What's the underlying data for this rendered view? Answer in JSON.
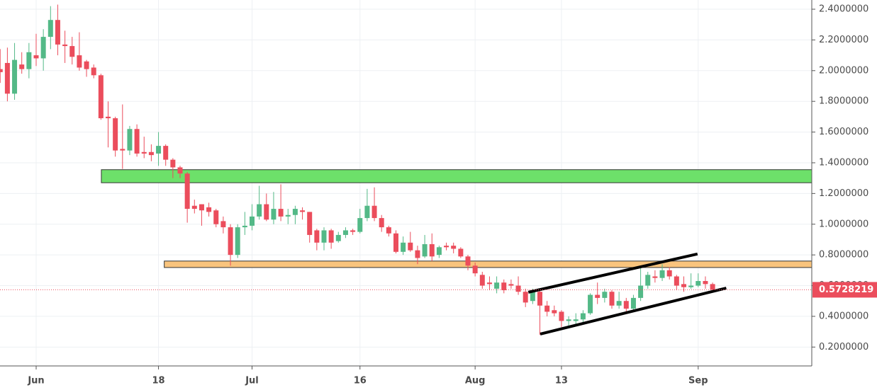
{
  "chart_data": {
    "type": "candlestick",
    "categories": [
      null,
      null,
      null,
      null,
      null,
      "Jun",
      null,
      null,
      null,
      null,
      null,
      null,
      null,
      null,
      null,
      null,
      null,
      null,
      null,
      null,
      null,
      null,
      "18",
      null,
      null,
      null,
      null,
      null,
      null,
      null,
      null,
      null,
      null,
      null,
      null,
      "Jul",
      null,
      null,
      null,
      null,
      null,
      null,
      null,
      null,
      null,
      null,
      null,
      null,
      null,
      null,
      "16",
      null,
      null,
      null,
      null,
      null,
      null,
      null,
      null,
      null,
      null,
      null,
      null,
      null,
      null,
      null,
      "Aug",
      null,
      null,
      null,
      null,
      null,
      null,
      null,
      null,
      null,
      null,
      null,
      "13",
      null,
      null,
      null,
      null,
      null,
      null,
      null,
      null,
      null,
      null,
      null,
      null,
      null,
      null,
      null,
      null,
      null,
      null,
      "Sep",
      null,
      null
    ],
    "open": [
      2.01,
      2.05,
      1.85,
      2.04,
      2.01,
      2.1,
      2.08,
      2.22,
      2.33,
      2.17,
      2.16,
      2.1,
      2.06,
      2.02,
      1.97,
      1.7,
      1.69,
      1.49,
      1.48,
      1.62,
      1.47,
      1.47,
      1.46,
      1.51,
      1.42,
      1.37,
      1.33,
      1.12,
      1.13,
      1.11,
      1.09,
      1.02,
      0.98,
      0.8,
      0.98,
      0.99,
      1.05,
      1.13,
      1.03,
      1.1,
      1.05,
      1.06,
      1.09,
      1.08,
      0.96,
      0.88,
      0.96,
      0.89,
      0.93,
      0.96,
      0.95,
      1.04,
      1.12,
      1.04,
      0.98,
      0.94,
      0.82,
      0.88,
      0.83,
      0.79,
      0.87,
      0.8,
      0.86,
      0.86,
      0.84,
      0.79,
      0.73,
      0.67,
      0.62,
      0.58,
      0.62,
      0.61,
      0.6,
      0.56,
      0.5,
      0.56,
      0.47,
      0.44,
      0.43,
      0.37,
      0.37,
      0.38,
      0.42,
      0.54,
      0.52,
      0.56,
      0.47,
      0.5,
      0.45,
      0.52,
      0.6,
      0.66,
      0.65,
      0.7,
      0.66,
      0.61,
      0.59,
      0.6,
      0.63,
      0.61
    ],
    "high": [
      2.14,
      2.15,
      2.18,
      2.12,
      2.18,
      2.24,
      2.27,
      2.42,
      2.43,
      2.26,
      2.22,
      2.25,
      2.07,
      2.04,
      1.98,
      1.8,
      1.7,
      1.78,
      1.64,
      1.65,
      1.57,
      1.52,
      1.6,
      1.52,
      1.43,
      1.38,
      1.34,
      1.16,
      1.13,
      1.14,
      1.1,
      1.05,
      1.0,
      1.0,
      1.08,
      1.13,
      1.25,
      1.2,
      1.21,
      1.26,
      1.1,
      1.12,
      1.11,
      1.08,
      0.97,
      0.98,
      0.97,
      0.95,
      0.98,
      0.97,
      1.1,
      1.23,
      1.24,
      1.06,
      0.99,
      0.96,
      0.92,
      0.95,
      0.86,
      0.93,
      0.94,
      0.86,
      0.88,
      0.88,
      0.85,
      0.8,
      0.75,
      0.69,
      0.66,
      0.66,
      0.64,
      0.64,
      0.66,
      0.58,
      0.58,
      0.57,
      0.5,
      0.47,
      0.44,
      0.4,
      0.42,
      0.44,
      0.55,
      0.62,
      0.58,
      0.57,
      0.56,
      0.52,
      0.54,
      0.72,
      0.69,
      0.7,
      0.74,
      0.72,
      0.67,
      0.66,
      0.68,
      0.68,
      0.66,
      0.62
    ],
    "low": [
      1.92,
      1.8,
      1.81,
      1.98,
      1.95,
      2.03,
      2.0,
      2.14,
      2.1,
      2.05,
      2.04,
      2.0,
      1.96,
      1.95,
      1.68,
      1.5,
      1.44,
      1.36,
      1.45,
      1.44,
      1.43,
      1.41,
      1.38,
      1.38,
      1.3,
      1.3,
      1.01,
      1.07,
      0.99,
      1.05,
      0.98,
      0.94,
      0.73,
      0.78,
      0.93,
      0.96,
      1.03,
      1.02,
      1.0,
      1.02,
      1.0,
      1.0,
      1.03,
      0.88,
      0.83,
      0.83,
      0.84,
      0.88,
      0.91,
      0.93,
      0.94,
      1.02,
      1.02,
      0.95,
      0.92,
      0.81,
      0.8,
      0.82,
      0.74,
      0.78,
      0.76,
      0.78,
      0.83,
      0.81,
      0.78,
      0.7,
      0.66,
      0.58,
      0.57,
      0.55,
      0.55,
      0.58,
      0.54,
      0.46,
      0.48,
      0.28,
      0.4,
      0.4,
      0.33,
      0.34,
      0.34,
      0.36,
      0.41,
      0.48,
      0.49,
      0.45,
      0.45,
      0.43,
      0.43,
      0.5,
      0.58,
      0.62,
      0.63,
      0.64,
      0.57,
      0.56,
      0.58,
      0.59,
      0.58,
      0.56
    ],
    "close": [
      1.99,
      1.85,
      2.07,
      2.01,
      2.12,
      2.08,
      2.22,
      2.33,
      2.17,
      2.16,
      2.09,
      2.02,
      2.01,
      1.97,
      1.69,
      1.69,
      1.48,
      1.48,
      1.62,
      1.46,
      1.46,
      1.45,
      1.51,
      1.42,
      1.37,
      1.33,
      1.1,
      1.1,
      1.09,
      1.08,
      1.0,
      0.98,
      0.8,
      0.98,
      0.99,
      1.05,
      1.13,
      1.03,
      1.1,
      1.05,
      1.06,
      1.1,
      1.08,
      0.93,
      0.88,
      0.96,
      0.88,
      0.93,
      0.96,
      0.95,
      1.04,
      1.12,
      1.04,
      0.98,
      0.94,
      0.82,
      0.88,
      0.83,
      0.78,
      0.87,
      0.79,
      0.85,
      0.85,
      0.84,
      0.79,
      0.73,
      0.68,
      0.6,
      0.61,
      0.62,
      0.57,
      0.6,
      0.56,
      0.49,
      0.56,
      0.47,
      0.43,
      0.42,
      0.37,
      0.38,
      0.38,
      0.42,
      0.54,
      0.52,
      0.56,
      0.47,
      0.5,
      0.45,
      0.52,
      0.6,
      0.67,
      0.65,
      0.7,
      0.66,
      0.6,
      0.59,
      0.6,
      0.63,
      0.61,
      0.5728219
    ],
    "up_color": "#53b987",
    "down_color": "#eb4d5c",
    "ylim": [
      0.077,
      2.46
    ],
    "yticks": [
      {
        "value": 0.2,
        "label": "0.2000000"
      },
      {
        "value": 0.4,
        "label": "0.4000000"
      },
      {
        "value": 0.6,
        "label": "0.6000000"
      },
      {
        "value": 0.8,
        "label": "0.8000000"
      },
      {
        "value": 1.0,
        "label": "1.0000000"
      },
      {
        "value": 1.2,
        "label": "1.2000000"
      },
      {
        "value": 1.4,
        "label": "1.4000000"
      },
      {
        "value": 1.6,
        "label": "1.6000000"
      },
      {
        "value": 1.8,
        "label": "1.8000000"
      },
      {
        "value": 2.0,
        "label": "2.0000000"
      },
      {
        "value": 2.2,
        "label": "2.2000000"
      },
      {
        "value": 2.4,
        "label": "2.4000000"
      }
    ],
    "grid": true,
    "zones": [
      {
        "color": "#6de06a",
        "start": 14.06,
        "low": 1.27,
        "high": 1.355
      },
      {
        "color": "#f9c47d",
        "start": 22.8,
        "low": 0.718,
        "high": 0.76
      }
    ],
    "trendlines": [
      {
        "x": [
          73.4,
          96.9
        ],
        "y": [
          0.557,
          0.806
        ]
      },
      {
        "x": [
          75.05,
          100.9
        ],
        "y": [
          0.285,
          0.584
        ]
      }
    ]
  }
}
